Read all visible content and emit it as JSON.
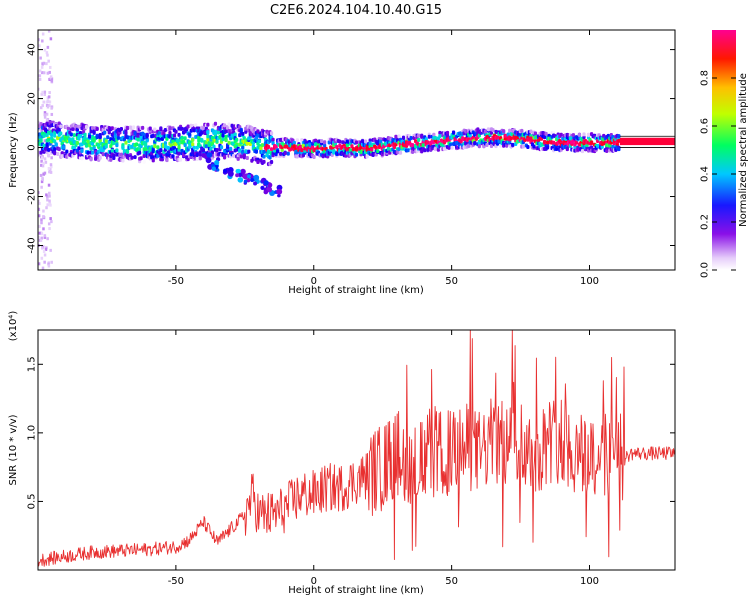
{
  "title": "C2E6.2024.104.10.40.G15",
  "chart_data": [
    {
      "type": "heatmap",
      "xlabel": "Height of straight line (km)",
      "ylabel": "Frequency (Hz)",
      "xlim": [
        -100,
        131
      ],
      "ylim": [
        -50,
        48
      ],
      "x_ticks": [
        -50,
        0,
        50,
        100
      ],
      "y_ticks": [
        -40,
        -20,
        0,
        20,
        40
      ],
      "colorbar": {
        "label": "Normalized spectral amplitude",
        "range": [
          0,
          1
        ],
        "ticks": [
          "0.0",
          "0.2",
          "0.4",
          "0.6",
          "0.8"
        ],
        "colors": [
          "#ffffff",
          "#d8b4f8",
          "#7a00e0",
          "#0000ff",
          "#00d0ff",
          "#00ff66",
          "#c8ff00",
          "#ffc800",
          "#ff0000",
          "#ff0099"
        ]
      },
      "ridge": {
        "x": [
          -100,
          -80,
          -60,
          -45,
          -35,
          -25,
          -18,
          -10,
          0,
          10,
          20,
          30,
          40,
          50,
          60,
          70,
          80,
          90,
          100,
          111,
          131
        ],
        "y": [
          4,
          2,
          1,
          2,
          3,
          2,
          0,
          0,
          -0.5,
          0,
          -0.5,
          1,
          2,
          3,
          4,
          4,
          3,
          2,
          2,
          2,
          2
        ]
      },
      "band_after_x": 111,
      "band_range": [
        1,
        4
      ]
    },
    {
      "type": "line",
      "xlabel": "Height of straight line (km)",
      "ylabel": "SNR (10 * v/v)",
      "y_scale_label": "(x10⁴)",
      "xlim": [
        -100,
        131
      ],
      "ylim": [
        0,
        1.75
      ],
      "x_ticks": [
        -50,
        0,
        50,
        100
      ],
      "y_ticks": [
        "0.5",
        "1.0",
        "1.5"
      ],
      "y_tick_values": [
        0.5,
        1.0,
        1.5
      ],
      "line_color": "#e83030",
      "series": [
        {
          "x": [
            -100,
            -90,
            -80,
            -70,
            -60,
            -50,
            -45,
            -40,
            -35,
            -30,
            -25,
            -22,
            -20,
            -15,
            -10,
            -5,
            0,
            5,
            10,
            15,
            20,
            25,
            30,
            35,
            40,
            45,
            50,
            55,
            60,
            65,
            70,
            72,
            75,
            80,
            85,
            90,
            95,
            100,
            105,
            108,
            110,
            112,
            115,
            120,
            125,
            131
          ],
          "y": [
            0.07,
            0.1,
            0.13,
            0.14,
            0.15,
            0.17,
            0.22,
            0.35,
            0.2,
            0.3,
            0.4,
            0.55,
            0.4,
            0.4,
            0.45,
            0.55,
            0.55,
            0.6,
            0.6,
            0.65,
            0.7,
            0.75,
            0.85,
            0.8,
            0.8,
            0.85,
            0.85,
            0.9,
            0.85,
            0.95,
            0.9,
            1.0,
            0.95,
            0.85,
            0.95,
            0.95,
            0.85,
            0.85,
            0.85,
            0.75,
            1.0,
            0.8,
            0.85,
            0.85,
            0.85,
            0.85
          ]
        }
      ]
    }
  ]
}
